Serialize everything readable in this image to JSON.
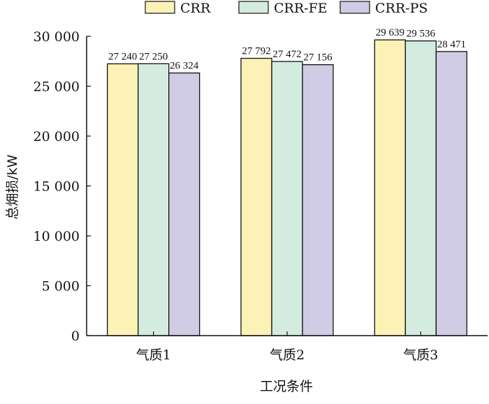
{
  "colors": {
    "CRR": "#fdf2b6",
    "CRR-FE": "#d4ecdf",
    "CRR-PS": "#d0cce6"
  },
  "chart_data": {
    "type": "bar",
    "title": "",
    "xlabel": "工况条件",
    "ylabel": "总㶲损/kW",
    "categories": [
      "气质1",
      "气质2",
      "气质3"
    ],
    "series": [
      {
        "name": "CRR",
        "values": [
          27240,
          27792,
          29639
        ],
        "labels": [
          "27 240",
          "27 792",
          "29 639"
        ]
      },
      {
        "name": "CRR-FE",
        "values": [
          27250,
          27472,
          29536
        ],
        "labels": [
          "27 250",
          "27 472",
          "29 536"
        ]
      },
      {
        "name": "CRR-PS",
        "values": [
          26324,
          27156,
          28471
        ],
        "labels": [
          "26 324",
          "27 156",
          "28 471"
        ]
      }
    ],
    "ylim": [
      0,
      30000
    ],
    "yticks": [
      0,
      5000,
      10000,
      15000,
      20000,
      25000,
      30000
    ],
    "ytick_labels": [
      "0",
      "5 000",
      "10 000",
      "15 000",
      "20 000",
      "25 000",
      "30 000"
    ],
    "legend_position": "top",
    "grid": false
  }
}
